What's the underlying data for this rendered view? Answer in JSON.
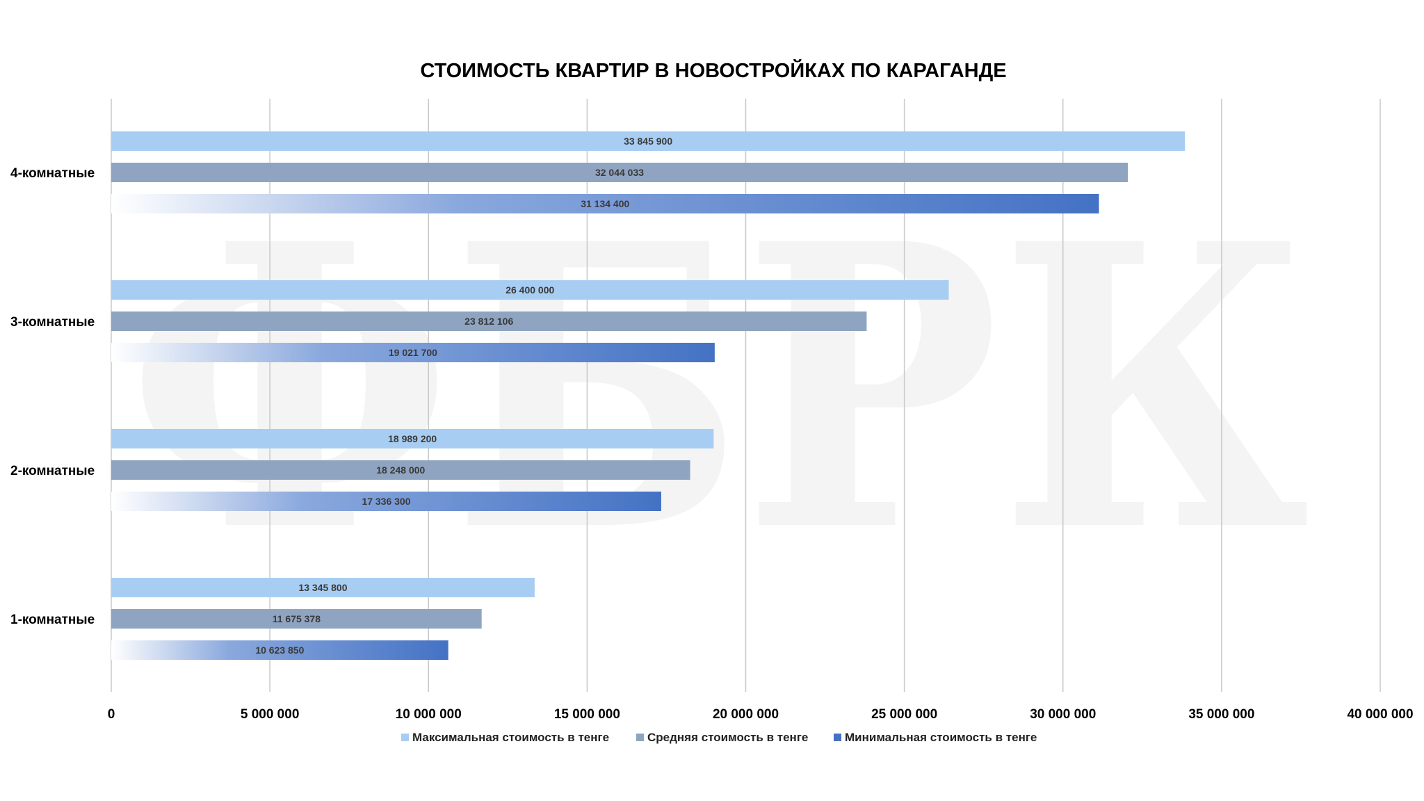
{
  "watermark": "ФБРК",
  "chart_data": {
    "type": "bar",
    "orientation": "horizontal",
    "title": "СТОИМОСТЬ КВАРТИР В НОВОСТРОЙКАХ ПО КАРАГАНДЕ",
    "categories": [
      "4-комнатные",
      "3-комнатные",
      "2-комнатные",
      "1-комнатные"
    ],
    "series": [
      {
        "name": "Максимальная стоимость в тенге",
        "color": "#a8cdf2",
        "values": [
          33845900,
          26400000,
          18989200,
          13345800
        ],
        "labels": [
          "33 845 900",
          "26 400 000",
          "18 989 200",
          "13 345 800"
        ]
      },
      {
        "name": "Средняя стоимость в тенге",
        "color": "#8fa4c0",
        "values": [
          32044033,
          23812106,
          18248000,
          11675378
        ],
        "labels": [
          "32 044 033",
          "23 812 106",
          "18 248 000",
          "11 675 378"
        ]
      },
      {
        "name": "Минимальная стоимость в тенге",
        "color": "#4472c4",
        "gradient": true,
        "values": [
          31134400,
          19021700,
          17336300,
          10623850
        ],
        "labels": [
          "31 134 400",
          "19 021 700",
          "17 336 300",
          "10 623 850"
        ]
      }
    ],
    "xlim": [
      0,
      40000000
    ],
    "xticks": [
      0,
      5000000,
      10000000,
      15000000,
      20000000,
      25000000,
      30000000,
      35000000,
      40000000
    ],
    "xtick_labels": [
      "0",
      "5 000 000",
      "10 000 000",
      "15 000 000",
      "20 000 000",
      "25 000 000",
      "30 000 000",
      "35 000 000",
      "40 000 000"
    ],
    "xlabel": "",
    "ylabel": "",
    "grid": true,
    "legend_position": "bottom"
  }
}
